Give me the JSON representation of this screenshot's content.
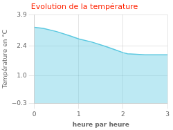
{
  "chart_data": {
    "type": "area",
    "title": "Evolution de la température",
    "xlabel": "heure par heure",
    "ylabel": "Température en °C",
    "x": [
      0,
      0.2,
      0.5,
      0.8,
      1.0,
      1.3,
      1.6,
      1.8,
      2.0,
      2.1,
      2.5,
      3.0
    ],
    "values": [
      3.3,
      3.25,
      3.1,
      2.9,
      2.75,
      2.6,
      2.4,
      2.25,
      2.1,
      2.05,
      2.0,
      2.0
    ],
    "color": "#5bc8e0",
    "xlim": [
      0,
      3
    ],
    "ylim": [
      -0.3,
      3.9
    ],
    "xticks": [
      0,
      1,
      2,
      3
    ],
    "yticks": [
      {
        "value": -0.3,
        "label": "−0.3"
      },
      {
        "value": 1.0,
        "label": "1.0"
      },
      2.4,
      3.9
    ],
    "grid": true
  }
}
